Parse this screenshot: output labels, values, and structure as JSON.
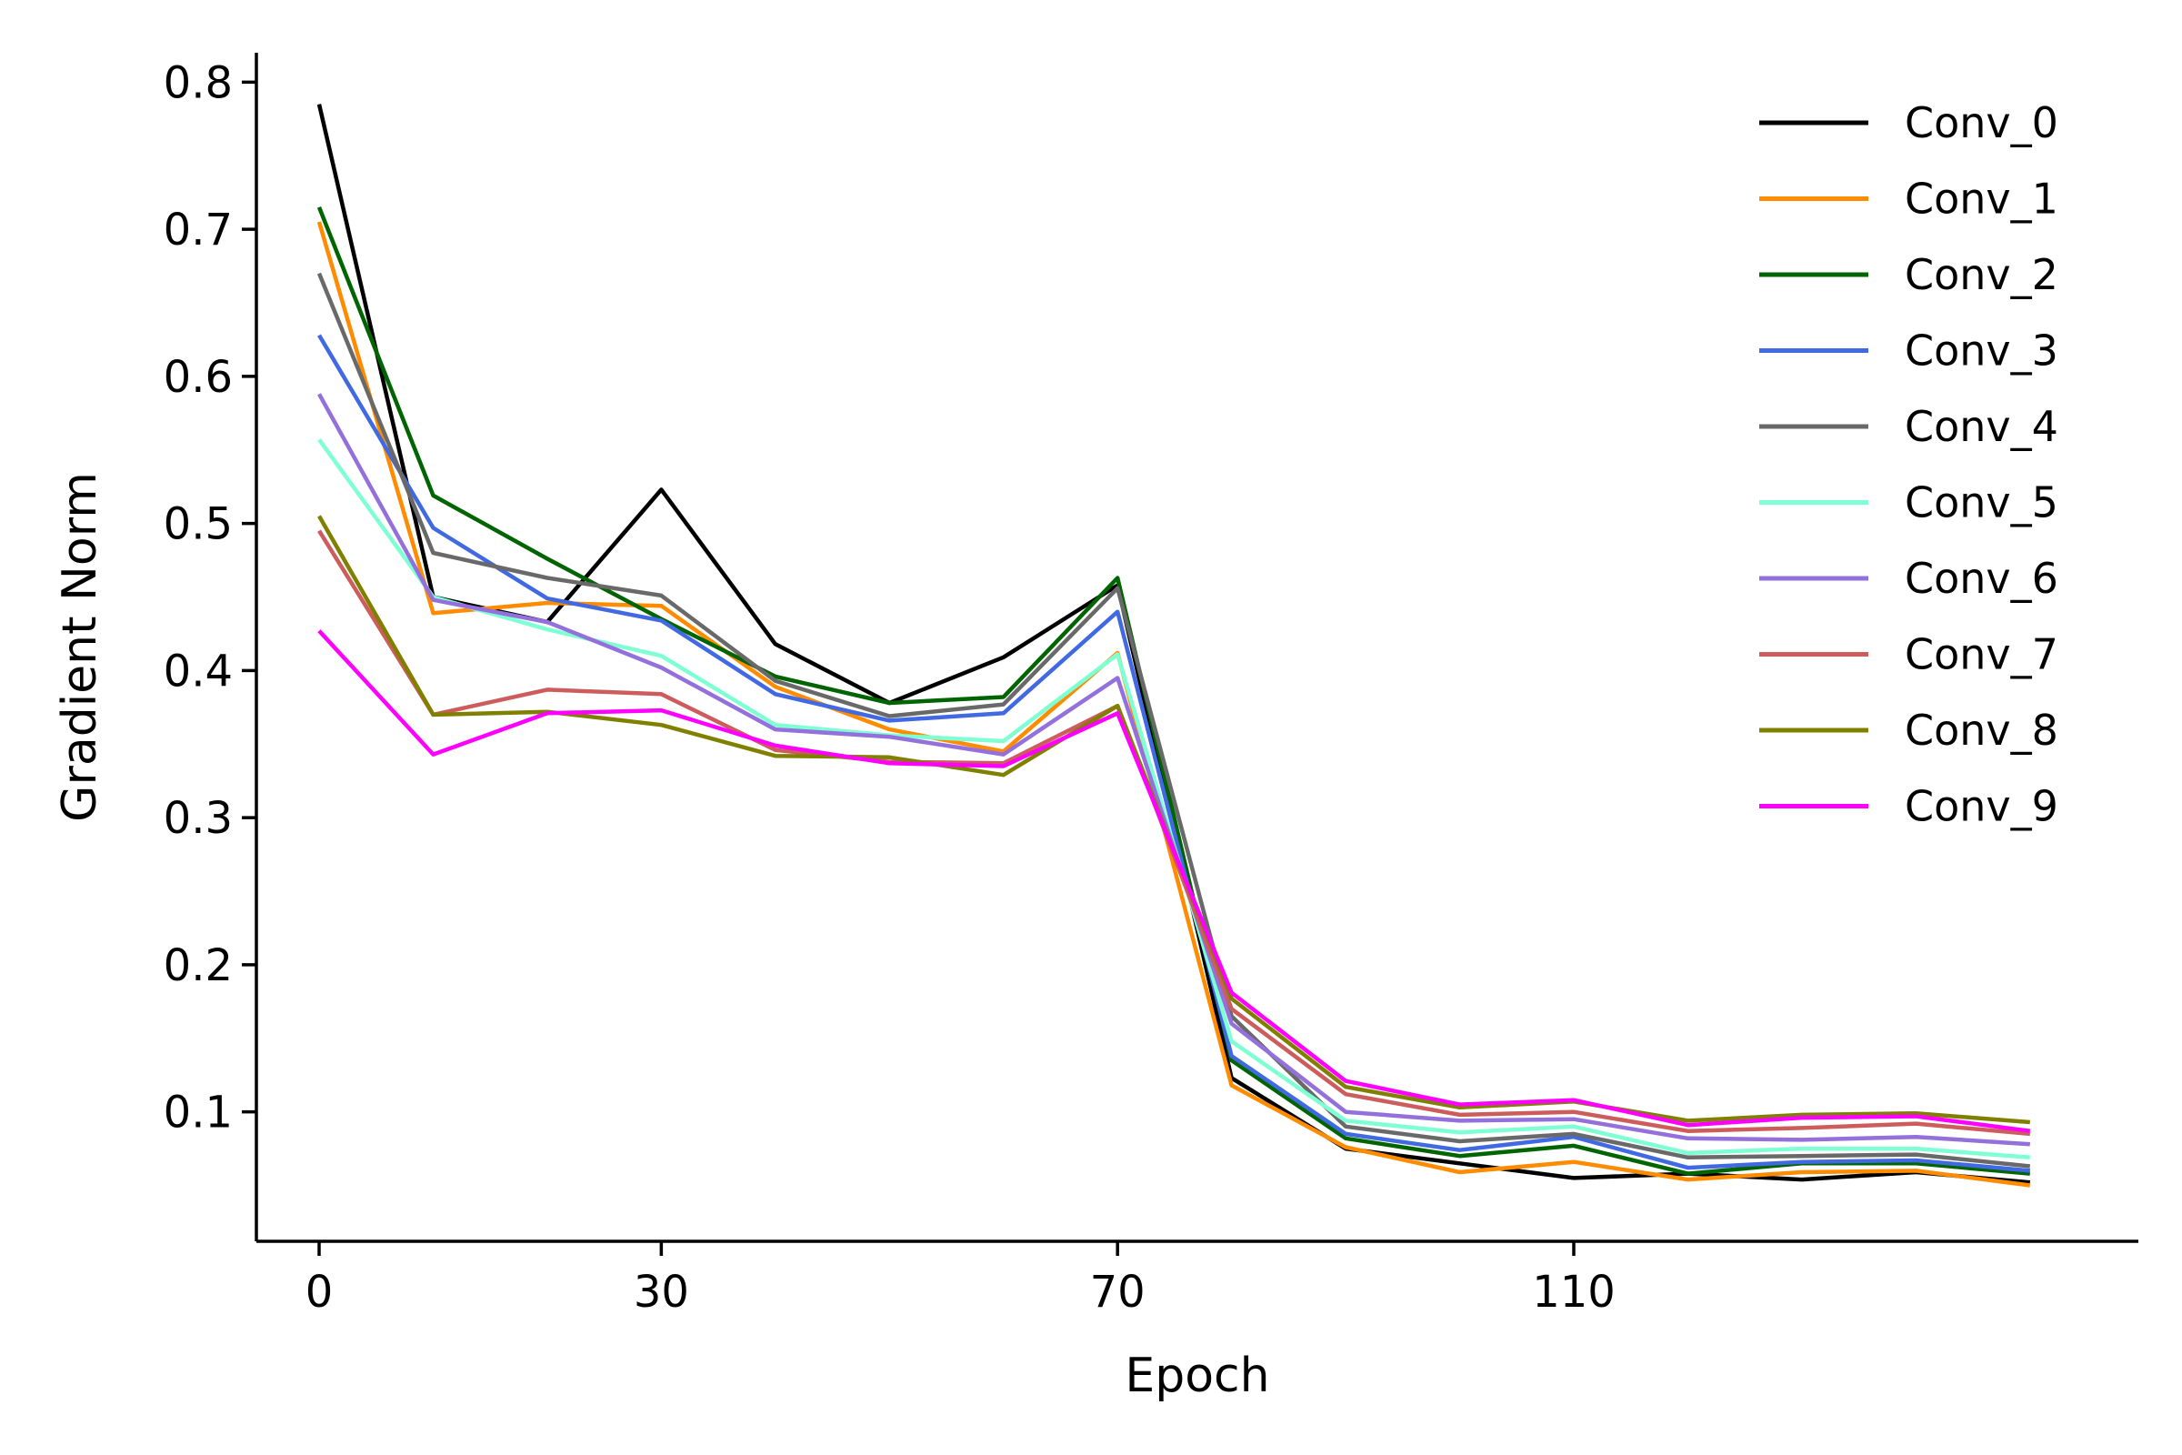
{
  "chart_data": {
    "type": "line",
    "title": "",
    "xlabel": "Epoch",
    "ylabel": "Gradient Norm",
    "xlim": [
      -5.5,
      159.5
    ],
    "ylim": [
      0.012,
      0.82
    ],
    "xticks": [
      0,
      30,
      70,
      110
    ],
    "yticks": [
      0.1,
      0.2,
      0.3,
      0.4,
      0.5,
      0.6,
      0.7,
      0.8
    ],
    "ytick_labels": [
      "0.1",
      "0.2",
      "0.3",
      "0.4",
      "0.5",
      "0.6",
      "0.7",
      "0.8"
    ],
    "xtick_labels": [
      "0",
      "30",
      "70",
      "110"
    ],
    "grid": false,
    "legend_position": "top-right",
    "x": [
      0,
      10,
      20,
      30,
      40,
      50,
      60,
      70,
      80,
      90,
      100,
      110,
      120,
      130,
      140,
      150
    ],
    "series": [
      {
        "name": "Conv_0",
        "color": "#000000",
        "values": [
          0.785,
          0.45,
          0.433,
          0.523,
          0.418,
          0.378,
          0.409,
          0.458,
          0.123,
          0.075,
          0.065,
          0.055,
          0.058,
          0.054,
          0.059,
          0.052
        ]
      },
      {
        "name": "Conv_1",
        "color": "#ff8c00",
        "values": [
          0.705,
          0.439,
          0.446,
          0.444,
          0.389,
          0.36,
          0.345,
          0.412,
          0.118,
          0.076,
          0.059,
          0.066,
          0.054,
          0.059,
          0.06,
          0.05
        ]
      },
      {
        "name": "Conv_2",
        "color": "#006400",
        "values": [
          0.715,
          0.519,
          0.476,
          0.435,
          0.396,
          0.378,
          0.382,
          0.463,
          0.135,
          0.082,
          0.07,
          0.077,
          0.058,
          0.065,
          0.065,
          0.058
        ]
      },
      {
        "name": "Conv_3",
        "color": "#4169e1",
        "values": [
          0.628,
          0.497,
          0.449,
          0.434,
          0.384,
          0.366,
          0.371,
          0.44,
          0.138,
          0.085,
          0.074,
          0.083,
          0.062,
          0.066,
          0.067,
          0.06
        ]
      },
      {
        "name": "Conv_4",
        "color": "#696969",
        "values": [
          0.67,
          0.48,
          0.463,
          0.451,
          0.393,
          0.369,
          0.377,
          0.456,
          0.165,
          0.09,
          0.08,
          0.085,
          0.069,
          0.07,
          0.071,
          0.063
        ]
      },
      {
        "name": "Conv_5",
        "color": "#7fffd4",
        "values": [
          0.557,
          0.45,
          0.428,
          0.41,
          0.363,
          0.356,
          0.352,
          0.411,
          0.148,
          0.094,
          0.086,
          0.09,
          0.072,
          0.075,
          0.075,
          0.069
        ]
      },
      {
        "name": "Conv_6",
        "color": "#9370db",
        "values": [
          0.588,
          0.448,
          0.433,
          0.402,
          0.36,
          0.355,
          0.343,
          0.395,
          0.16,
          0.1,
          0.094,
          0.095,
          0.082,
          0.081,
          0.083,
          0.078
        ]
      },
      {
        "name": "Conv_7",
        "color": "#cd5c5c",
        "values": [
          0.495,
          0.37,
          0.387,
          0.384,
          0.346,
          0.338,
          0.337,
          0.376,
          0.17,
          0.112,
          0.098,
          0.1,
          0.087,
          0.089,
          0.092,
          0.085
        ]
      },
      {
        "name": "Conv_8",
        "color": "#808000",
        "values": [
          0.505,
          0.37,
          0.372,
          0.363,
          0.342,
          0.341,
          0.329,
          0.376,
          0.177,
          0.117,
          0.103,
          0.107,
          0.094,
          0.098,
          0.099,
          0.093
        ]
      },
      {
        "name": "Conv_9",
        "color": "#ff00ff",
        "values": [
          0.427,
          0.343,
          0.371,
          0.373,
          0.349,
          0.337,
          0.335,
          0.371,
          0.181,
          0.121,
          0.105,
          0.108,
          0.091,
          0.096,
          0.097,
          0.087
        ]
      }
    ]
  }
}
